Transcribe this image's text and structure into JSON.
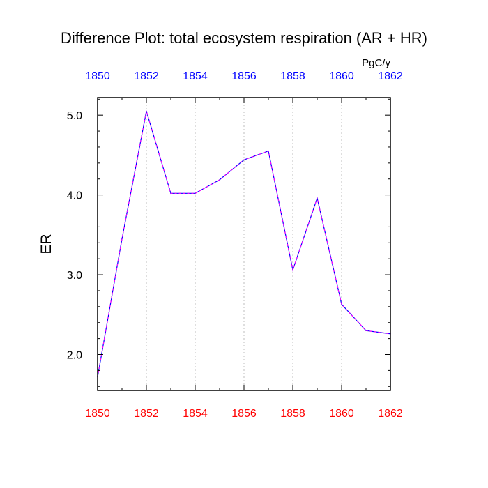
{
  "chart_data": {
    "type": "line",
    "title": "Difference Plot: total ecosystem respiration (AR + HR)",
    "units": "PgC/y",
    "ylabel": "ER",
    "xlabel": "",
    "xlim": [
      1850,
      1862
    ],
    "ylim": [
      1.55,
      5.22
    ],
    "x_ticks": [
      1850,
      1852,
      1854,
      1856,
      1858,
      1860,
      1862
    ],
    "x_tick_labels": [
      "1850",
      "1852",
      "1854",
      "1856",
      "1858",
      "1860",
      "1862"
    ],
    "x_minor_ticks": [
      1851,
      1853,
      1855,
      1857,
      1859,
      1861
    ],
    "y_ticks": [
      2.0,
      3.0,
      4.0,
      5.0
    ],
    "y_tick_labels": [
      "2.0",
      "3.0",
      "4.0",
      "5.0"
    ],
    "y_minor_ticks": [
      1.6,
      1.8,
      2.2,
      2.4,
      2.6,
      2.8,
      3.2,
      3.4,
      3.6,
      3.8,
      4.2,
      4.4,
      4.6,
      4.8,
      5.2
    ],
    "grid": "vertical dotted at major x ticks",
    "top_axis_color": "#0000ff",
    "bottom_axis_color": "#ff0000",
    "line_color": "#8000ff",
    "x": [
      1850,
      1851,
      1852,
      1853,
      1854,
      1855,
      1856,
      1857,
      1858,
      1859,
      1860,
      1861,
      1862
    ],
    "series": [
      {
        "values": [
          1.72,
          3.45,
          5.05,
          4.02,
          4.02,
          4.19,
          4.44,
          4.55,
          3.06,
          3.96,
          2.63,
          2.3,
          2.26
        ]
      }
    ]
  }
}
